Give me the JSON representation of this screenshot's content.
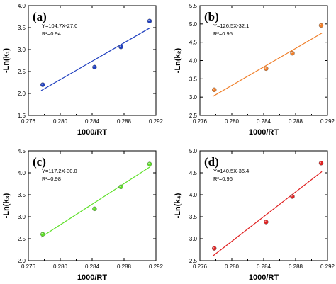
{
  "chart_data": [
    {
      "panel": "(a)",
      "type": "scatter",
      "equation": "Y=104.7X-27.0",
      "r2": "R²=0.94",
      "xlabel": "1000/RT",
      "ylabel": "-Ln(k₁)",
      "xlim": [
        0.276,
        0.292
      ],
      "ylim": [
        1.5,
        4.0
      ],
      "xticks": [
        "0.276",
        "0.280",
        "0.284",
        "0.288",
        "0.292"
      ],
      "yticks": [
        "1.5",
        "2.0",
        "2.5",
        "3.0",
        "3.5",
        "4.0"
      ],
      "x": [
        0.2778,
        0.2843,
        0.2876,
        0.2912
      ],
      "y": [
        2.2,
        2.6,
        3.06,
        3.65
      ],
      "color": "#1f3fbf",
      "fit": {
        "slope": 104.7,
        "intercept": -27.0
      }
    },
    {
      "panel": "(b)",
      "type": "scatter",
      "equation": "Y=126.5X-32.1",
      "r2": "R²=0.95",
      "xlabel": "1000/RT",
      "ylabel": "-Ln(k₂)",
      "xlim": [
        0.276,
        0.292
      ],
      "ylim": [
        2.5,
        5.5
      ],
      "xticks": [
        "0.276",
        "0.280",
        "0.284",
        "0.288",
        "0.292"
      ],
      "yticks": [
        "2.5",
        "3.0",
        "3.5",
        "4.0",
        "4.5",
        "5.0",
        "5.5"
      ],
      "x": [
        0.2778,
        0.2843,
        0.2876,
        0.2912
      ],
      "y": [
        3.2,
        3.78,
        4.2,
        4.96
      ],
      "color": "#f07f2a",
      "fit": {
        "slope": 126.5,
        "intercept": -32.1
      }
    },
    {
      "panel": "(c)",
      "type": "scatter",
      "equation": "Y=117.2X-30.0",
      "r2": "R²=0.98",
      "xlabel": "1000/RT",
      "ylabel": "-Ln(k₃)",
      "xlim": [
        0.276,
        0.292
      ],
      "ylim": [
        2.0,
        4.5
      ],
      "xticks": [
        "0.276",
        "0.280",
        "0.284",
        "0.288",
        "0.292"
      ],
      "yticks": [
        "2.0",
        "2.5",
        "3.0",
        "3.5",
        "4.0",
        "4.5"
      ],
      "x": [
        0.2778,
        0.2843,
        0.2876,
        0.2912
      ],
      "y": [
        2.6,
        3.18,
        3.68,
        4.2
      ],
      "color": "#5fe02a",
      "fit": {
        "slope": 117.2,
        "intercept": -30.0
      }
    },
    {
      "panel": "(d)",
      "type": "scatter",
      "equation": "Y=140.5X-36.4",
      "r2": "R²=0.96",
      "xlabel": "1000/RT",
      "ylabel": "-Ln(k₄)",
      "xlim": [
        0.276,
        0.292
      ],
      "ylim": [
        2.5,
        5.0
      ],
      "xticks": [
        "0.276",
        "0.280",
        "0.284",
        "0.288",
        "0.292"
      ],
      "yticks": [
        "2.5",
        "3.0",
        "3.5",
        "4.0",
        "4.5",
        "5.0"
      ],
      "x": [
        0.2778,
        0.2843,
        0.2876,
        0.2912
      ],
      "y": [
        2.78,
        3.38,
        3.96,
        4.72
      ],
      "color": "#e02020",
      "fit": {
        "slope": 140.5,
        "intercept": -36.4
      }
    }
  ]
}
